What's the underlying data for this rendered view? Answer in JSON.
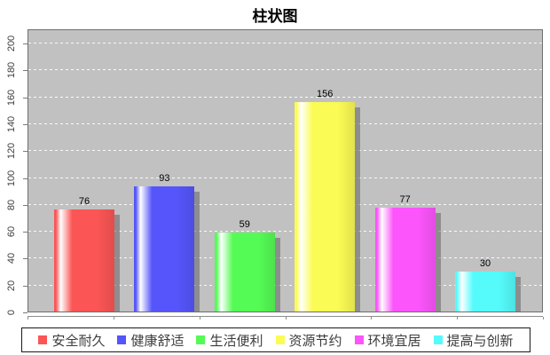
{
  "chart_data": {
    "type": "bar",
    "title": "柱状图",
    "categories": [
      "安全耐久",
      "健康舒适",
      "生活便利",
      "资源节约",
      "环境宜居",
      "提高与创新"
    ],
    "values": [
      76,
      93,
      59,
      156,
      77,
      30
    ],
    "value_labels": [
      "76",
      "93",
      "59",
      "156",
      "77",
      "30"
    ],
    "bar_colors": [
      "#fb5555",
      "#5555fb",
      "#55fb55",
      "#fbfb55",
      "#fb55fb",
      "#55fbfb"
    ],
    "xlabel": "",
    "ylabel": "",
    "ylim": [
      0,
      210
    ],
    "yticks": [
      0,
      20,
      40,
      60,
      80,
      100,
      120,
      140,
      160,
      180,
      200
    ],
    "grid": "horizontal white dashed",
    "grid_color": "#ffffff",
    "plot_background": "#c1c1c1",
    "legend_position": "bottom",
    "value_label_color": "#000000"
  }
}
